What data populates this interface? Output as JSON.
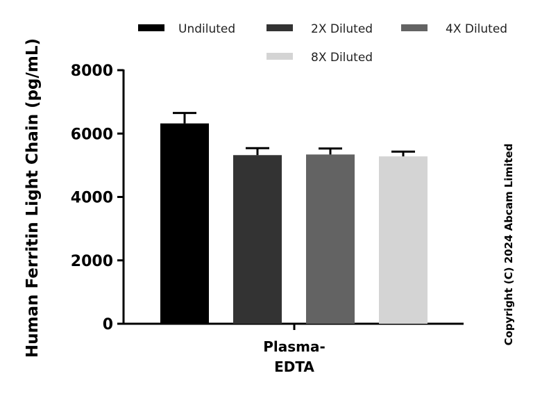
{
  "chart_data": {
    "type": "bar",
    "title": "",
    "xlabel": "",
    "ylabel": "Human Ferritin Light Chain (pg/mL)",
    "ylim": [
      0,
      8000
    ],
    "yticks": [
      "0",
      "2000",
      "4000",
      "6000",
      "8000"
    ],
    "categories": [
      "Plasma-\nEDTA"
    ],
    "category_lines": [
      "Plasma-",
      "EDTA"
    ],
    "series": [
      {
        "name": "Undiluted",
        "values": [
          6320
        ],
        "error": [
          330
        ],
        "color": "#000000"
      },
      {
        "name": "2X Diluted",
        "values": [
          5320
        ],
        "error": [
          220
        ],
        "color": "#333333"
      },
      {
        "name": "4X Diluted",
        "values": [
          5340
        ],
        "error": [
          190
        ],
        "color": "#636363"
      },
      {
        "name": "8X Diluted",
        "values": [
          5280
        ],
        "error": [
          150
        ],
        "color": "#d4d4d4"
      }
    ],
    "legend_position": "top",
    "grid": false
  },
  "copyright": "Copyright (C) 2024 Abcam Limited"
}
